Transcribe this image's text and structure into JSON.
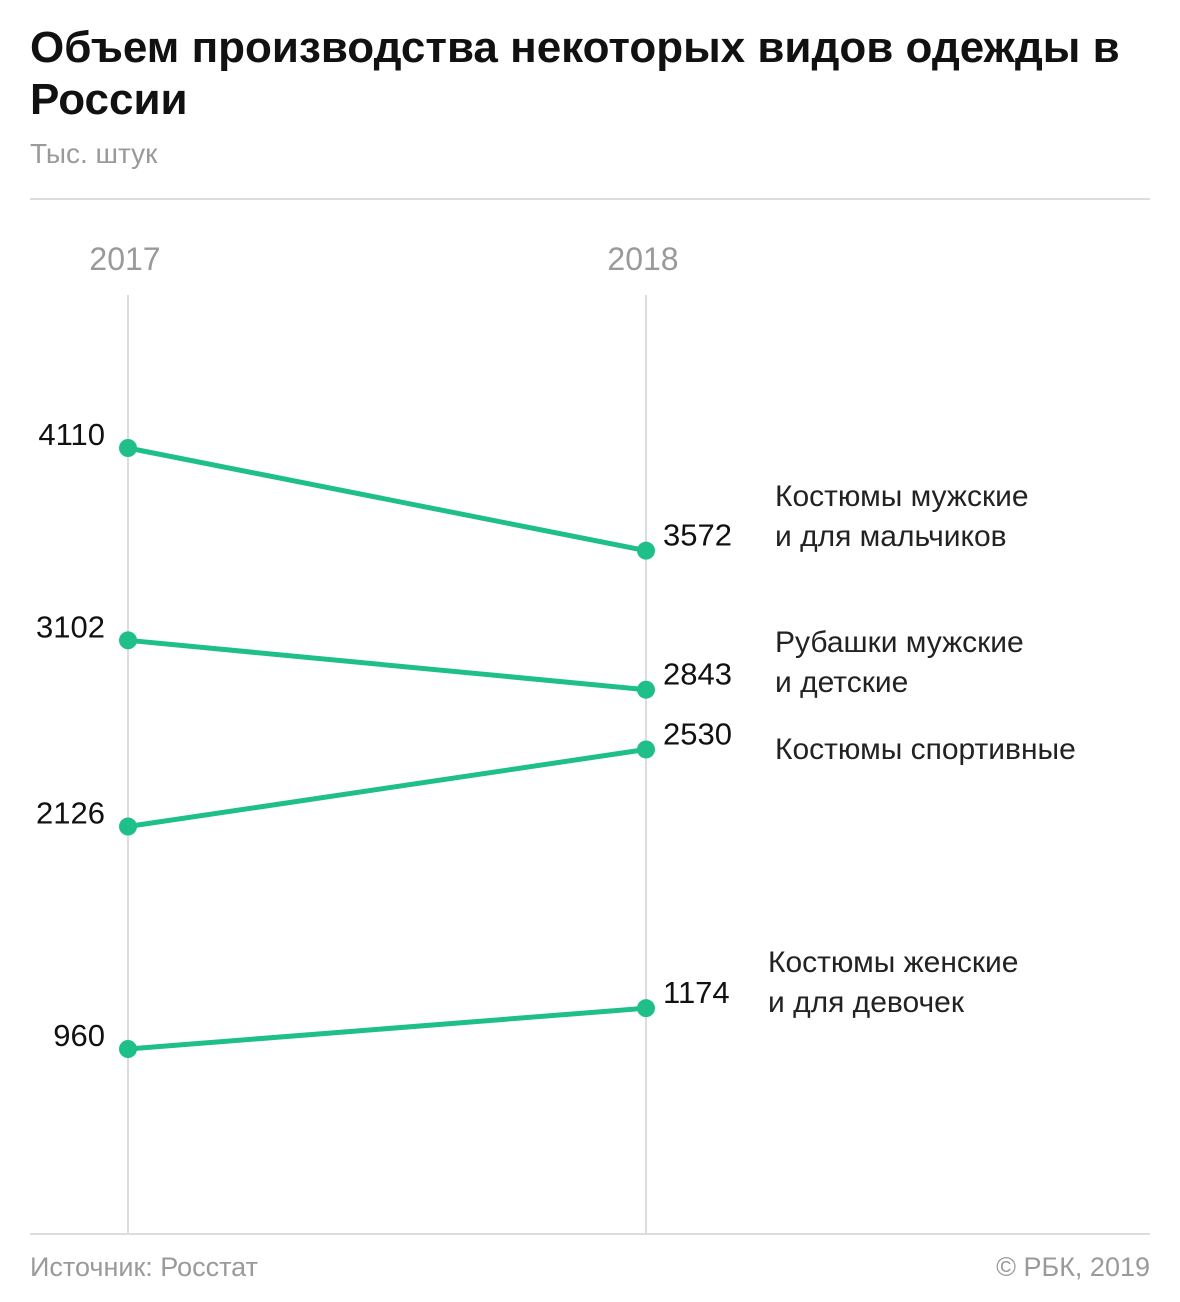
{
  "header": {
    "title": "Объем производства некоторых видов одежды в России",
    "subtitle": "Тыс. штук"
  },
  "footer": {
    "source": "Источник: Росстат",
    "copyright": "© РБК, 2019"
  },
  "colors": {
    "line": "#1fbf8a",
    "axis": "#dcdcdc",
    "muted": "#9a9a9a"
  },
  "chart_data": {
    "type": "line",
    "x": [
      "2017",
      "2018"
    ],
    "series": [
      {
        "name_lines": [
          "Костюмы мужские",
          "и для мальчиков"
        ],
        "values": [
          4110,
          3572
        ]
      },
      {
        "name_lines": [
          "Рубашки мужские",
          "и детские"
        ],
        "values": [
          3102,
          2843
        ]
      },
      {
        "name_lines": [
          "Костюмы спортивные"
        ],
        "values": [
          2126,
          2530
        ]
      },
      {
        "name_lines": [
          "Костюмы женские",
          "и для девочек"
        ],
        "values": [
          960,
          1174
        ]
      }
    ],
    "grid": false,
    "legend": "right, inline labels"
  }
}
